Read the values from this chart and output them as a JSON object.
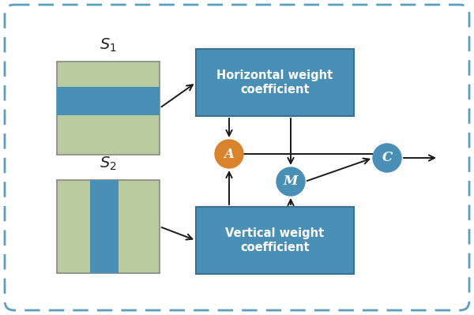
{
  "bg_color": "#ffffff",
  "border_color": "#5a9ec0",
  "box_fill_blue": "#4a8fb5",
  "box_fill_green_light": "#b8cca0",
  "circle_A_color": "#d9832e",
  "circle_M_color": "#4a8fb5",
  "circle_C_color": "#4a8fb5",
  "arrow_color": "#1a1a1a",
  "text_color_white": "#ffffff",
  "text_color_dark": "#222222",
  "s1_label": "$S_1$",
  "s2_label": "$S_2$",
  "horiz_label": "Horizontal weight\ncoefficient",
  "vert_label": "Vertical weight\ncoefficient",
  "A_label": "A",
  "M_label": "M",
  "C_label": "C"
}
